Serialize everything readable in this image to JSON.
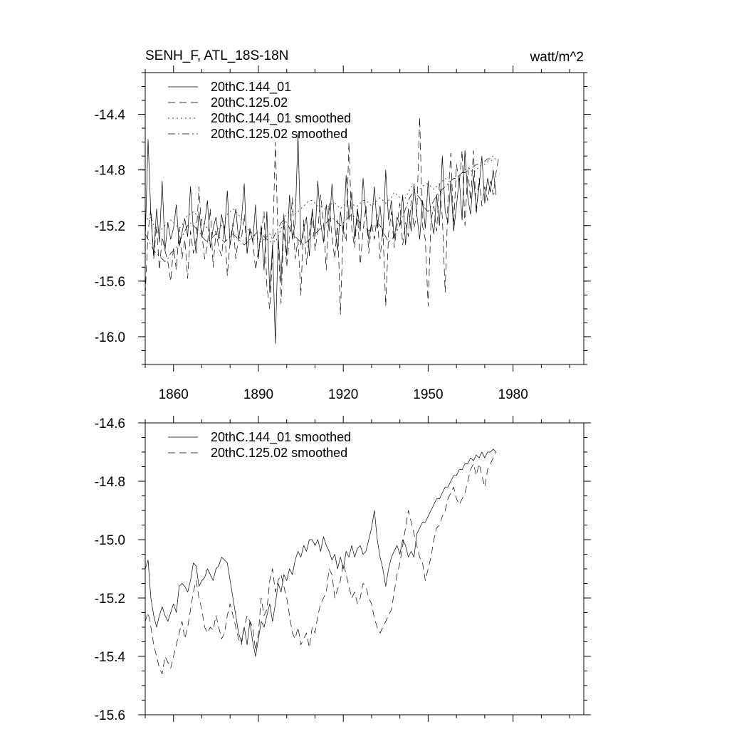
{
  "chart_data": [
    {
      "type": "line",
      "title": "SENH_F, ATL_18S-18N",
      "units": "watt/m^2",
      "xlabel": "",
      "ylabel": "",
      "xlim": [
        1850,
        2005
      ],
      "ylim": [
        -16.2,
        -14.1
      ],
      "xticks": [
        1860,
        1890,
        1920,
        1950,
        1980
      ],
      "xtick_labels": [
        "1860",
        "1890",
        "1920",
        "1950",
        "1980"
      ],
      "yticks": [
        -16.0,
        -15.6,
        -15.2,
        -14.8,
        -14.4
      ],
      "ytick_labels": [
        "-16.0",
        "-15.6",
        "-15.2",
        "-14.8",
        "-14.4"
      ],
      "legend_position": "top-left",
      "series": [
        {
          "name": "20thC.144_01",
          "style": "solid",
          "start": 1850,
          "values": [
            -15.3,
            -14.58,
            -15.12,
            -15.42,
            -15.08,
            -15.32,
            -14.88,
            -15.38,
            -15.18,
            -15.3,
            -15.22,
            -15.05,
            -15.35,
            -15.25,
            -15.15,
            -15.28,
            -14.92,
            -15.24,
            -15.4,
            -15.1,
            -15.28,
            -15.18,
            -15.02,
            -15.36,
            -15.22,
            -15.14,
            -15.3,
            -15.12,
            -15.26,
            -14.95,
            -15.34,
            -15.2,
            -15.08,
            -15.3,
            -15.16,
            -14.9,
            -15.4,
            -15.22,
            -15.32,
            -15.05,
            -15.44,
            -15.2,
            -15.52,
            -15.1,
            -15.68,
            -15.34,
            -16.05,
            -15.28,
            -15.6,
            -15.12,
            -15.42,
            -14.98,
            -15.3,
            -15.18,
            -14.54,
            -15.34,
            -15.22,
            -15.14,
            -15.42,
            -15.08,
            -15.28,
            -14.88,
            -15.18,
            -15.32,
            -15.05,
            -15.24,
            -14.9,
            -15.2,
            -15.38,
            -15.1,
            -15.26,
            -14.84,
            -15.16,
            -14.96,
            -15.3,
            -15.08,
            -15.24,
            -14.86,
            -15.12,
            -15.3,
            -15.18,
            -14.92,
            -15.22,
            -15.06,
            -15.28,
            -14.8,
            -15.16,
            -15.02,
            -15.3,
            -15.14,
            -15.2,
            -14.98,
            -15.34,
            -15.08,
            -15.24,
            -14.9,
            -15.12,
            -15.3,
            -15.02,
            -15.22,
            -14.88,
            -15.14,
            -15.26,
            -14.98,
            -15.2,
            -14.7,
            -15.1,
            -15.18,
            -14.88,
            -15.24,
            -15.06,
            -14.86,
            -15.16,
            -14.66,
            -15.0,
            -15.12,
            -14.84,
            -15.08,
            -14.92,
            -14.7,
            -15.04,
            -14.86,
            -14.96,
            -14.8,
            -14.98
          ]
        },
        {
          "name": "20thC.125.02",
          "style": "dashed",
          "start": 1850,
          "values": [
            -15.7,
            -15.24,
            -15.08,
            -15.44,
            -15.2,
            -15.52,
            -15.28,
            -15.38,
            -15.46,
            -15.6,
            -15.36,
            -15.52,
            -15.22,
            -15.44,
            -15.3,
            -15.58,
            -15.24,
            -15.4,
            -15.3,
            -14.92,
            -15.26,
            -15.44,
            -15.34,
            -15.08,
            -15.5,
            -15.24,
            -15.36,
            -15.42,
            -15.2,
            -15.56,
            -15.32,
            -15.18,
            -15.44,
            -15.28,
            -15.3,
            -15.12,
            -15.4,
            -15.24,
            -15.3,
            -15.52,
            -15.38,
            -15.26,
            -15.1,
            -15.64,
            -15.8,
            -15.4,
            -14.6,
            -15.34,
            -15.76,
            -15.2,
            -15.5,
            -15.28,
            -15.0,
            -15.44,
            -15.3,
            -15.7,
            -15.16,
            -15.48,
            -15.26,
            -15.1,
            -15.38,
            -15.24,
            -14.98,
            -15.18,
            -15.52,
            -15.04,
            -15.28,
            -15.44,
            -15.16,
            -15.84,
            -15.2,
            -15.32,
            -14.6,
            -15.22,
            -15.36,
            -15.1,
            -15.48,
            -15.24,
            -15.06,
            -15.4,
            -15.18,
            -15.3,
            -15.12,
            -15.44,
            -15.22,
            -15.78,
            -15.26,
            -15.1,
            -15.36,
            -15.2,
            -15.04,
            -15.34,
            -15.18,
            -15.28,
            -15.02,
            -15.22,
            -15.12,
            -14.42,
            -15.2,
            -15.3,
            -15.78,
            -15.16,
            -15.06,
            -15.24,
            -14.9,
            -15.14,
            -15.68,
            -15.02,
            -14.68,
            -15.2,
            -14.76,
            -14.9,
            -14.66,
            -15.2,
            -14.8,
            -15.02,
            -14.66,
            -15.12,
            -14.86,
            -15.06,
            -14.92,
            -15.02,
            -14.88,
            -14.98,
            -14.82,
            -14.7
          ]
        },
        {
          "name": "20thC.144_01 smoothed",
          "style": "dotted",
          "start": 1850,
          "values": [
            -15.12,
            -15.16,
            -15.14,
            -15.2,
            -15.24,
            -15.26,
            -15.22,
            -15.2,
            -15.18,
            -15.16,
            -15.18,
            -15.2,
            -15.22,
            -15.2,
            -15.16,
            -15.12,
            -15.12,
            -15.1,
            -15.12,
            -15.14,
            -15.16,
            -15.2,
            -15.22,
            -15.24,
            -15.26,
            -15.24,
            -15.22,
            -15.2,
            -15.16,
            -15.12,
            -15.1,
            -15.08,
            -15.1,
            -15.12,
            -15.16,
            -15.2,
            -15.22,
            -15.24,
            -15.26,
            -15.28,
            -15.3,
            -15.32,
            -15.3,
            -15.28,
            -15.26,
            -15.3,
            -15.32,
            -15.28,
            -15.22,
            -15.16,
            -15.12,
            -15.1,
            -15.1,
            -15.12,
            -15.1,
            -15.08,
            -15.06,
            -15.04,
            -15.02,
            -15.02,
            -15.04,
            -15.06,
            -15.06,
            -15.08,
            -15.08,
            -15.06,
            -15.04,
            -15.04,
            -15.06,
            -15.08,
            -15.06,
            -15.04,
            -15.02,
            -15.04,
            -15.06,
            -15.06,
            -15.04,
            -15.02,
            -15.02,
            -15.04,
            -15.06,
            -15.04,
            -15.02,
            -15.0,
            -15.02,
            -15.04,
            -15.02,
            -15.0,
            -14.96,
            -14.98,
            -15.0,
            -15.02,
            -15.0,
            -14.96,
            -14.92,
            -14.94,
            -14.96,
            -14.94,
            -14.92,
            -14.9,
            -14.9,
            -14.92,
            -14.94,
            -14.92,
            -14.9,
            -14.88,
            -14.86,
            -14.88,
            -14.88,
            -14.86,
            -14.84,
            -14.84,
            -14.82,
            -14.8,
            -14.78,
            -14.8,
            -14.82,
            -14.8,
            -14.78,
            -14.76,
            -14.76,
            -14.74,
            -14.74,
            -14.72,
            -14.72
          ]
        },
        {
          "name": "20thC.125.02 smoothed",
          "style": "dashdot",
          "start": 1850,
          "values": [
            -15.26,
            -15.3,
            -15.34,
            -15.38,
            -15.4,
            -15.42,
            -15.44,
            -15.46,
            -15.44,
            -15.4,
            -15.38,
            -15.36,
            -15.32,
            -15.28,
            -15.24,
            -15.2,
            -15.18,
            -15.2,
            -15.22,
            -15.24,
            -15.28,
            -15.3,
            -15.32,
            -15.3,
            -15.28,
            -15.26,
            -15.28,
            -15.3,
            -15.32,
            -15.3,
            -15.28,
            -15.26,
            -15.28,
            -15.3,
            -15.32,
            -15.34,
            -15.32,
            -15.3,
            -15.28,
            -15.26,
            -15.24,
            -15.26,
            -15.28,
            -15.3,
            -15.32,
            -15.3,
            -15.26,
            -15.22,
            -15.18,
            -15.16,
            -15.18,
            -15.22,
            -15.26,
            -15.28,
            -15.3,
            -15.32,
            -15.34,
            -15.32,
            -15.3,
            -15.28,
            -15.26,
            -15.24,
            -15.22,
            -15.2,
            -15.18,
            -15.16,
            -15.14,
            -15.16,
            -15.18,
            -15.2,
            -15.18,
            -15.16,
            -15.14,
            -15.12,
            -15.14,
            -15.16,
            -15.18,
            -15.2,
            -15.22,
            -15.24,
            -15.22,
            -15.2,
            -15.18,
            -15.2,
            -15.24,
            -15.28,
            -15.32,
            -15.3,
            -15.28,
            -15.24,
            -15.2,
            -15.14,
            -15.08,
            -15.02,
            -14.98,
            -14.96,
            -14.98,
            -15.0,
            -15.04,
            -15.08,
            -15.1,
            -15.06,
            -15.02,
            -14.98,
            -14.96,
            -14.94,
            -14.92,
            -14.9,
            -14.88,
            -14.86,
            -14.86,
            -14.84,
            -14.82,
            -14.82,
            -14.8,
            -14.78,
            -14.78,
            -14.76,
            -14.76,
            -14.74,
            -14.74,
            -14.72,
            -14.72,
            -14.7,
            -14.7
          ]
        }
      ]
    },
    {
      "type": "line",
      "title": "",
      "xlabel": "",
      "ylabel": "",
      "xlim": [
        1850,
        2005
      ],
      "ylim": [
        -15.6,
        -14.6
      ],
      "xticks": [
        1860,
        1890,
        1920,
        1950,
        1980
      ],
      "yticks": [
        -15.6,
        -15.4,
        -15.2,
        -15.0,
        -14.8,
        -14.6
      ],
      "ytick_labels": [
        "-15.6",
        "-15.4",
        "-15.2",
        "-15.0",
        "-14.8",
        "-14.6"
      ],
      "legend_position": "top-left",
      "series": [
        {
          "name": "20thC.144_01 smoothed",
          "style": "solid",
          "start": 1850,
          "values": [
            -15.1,
            -15.07,
            -15.2,
            -15.26,
            -15.3,
            -15.26,
            -15.23,
            -15.26,
            -15.28,
            -15.25,
            -15.22,
            -15.25,
            -15.16,
            -15.15,
            -15.16,
            -15.18,
            -15.14,
            -15.08,
            -15.09,
            -15.16,
            -15.14,
            -15.13,
            -15.1,
            -15.12,
            -15.14,
            -15.1,
            -15.09,
            -15.06,
            -15.07,
            -15.08,
            -15.14,
            -15.2,
            -15.26,
            -15.32,
            -15.35,
            -15.3,
            -15.36,
            -15.28,
            -15.35,
            -15.4,
            -15.34,
            -15.28,
            -15.3,
            -15.26,
            -15.22,
            -15.28,
            -15.22,
            -15.15,
            -15.18,
            -15.12,
            -15.14,
            -15.1,
            -15.12,
            -15.07,
            -15.04,
            -15.06,
            -15.02,
            -15.04,
            -15.0,
            -15.0,
            -15.02,
            -15.0,
            -15.04,
            -14.99,
            -15.02,
            -15.04,
            -15.07,
            -15.05,
            -15.1,
            -15.06,
            -15.1,
            -15.04,
            -15.06,
            -15.02,
            -15.06,
            -15.03,
            -15.02,
            -15.05,
            -15.04,
            -15.0,
            -14.96,
            -14.9,
            -15.0,
            -15.06,
            -15.1,
            -15.16,
            -15.1,
            -15.06,
            -15.04,
            -15.02,
            -15.05,
            -15.0,
            -15.02,
            -15.06,
            -15.04,
            -15.06,
            -14.98,
            -14.96,
            -14.94,
            -14.94,
            -14.92,
            -14.9,
            -14.88,
            -14.86,
            -14.86,
            -14.84,
            -14.82,
            -14.82,
            -14.8,
            -14.78,
            -14.78,
            -14.76,
            -14.76,
            -14.74,
            -14.74,
            -14.72,
            -14.73,
            -14.71,
            -14.72,
            -14.7,
            -14.72,
            -14.7,
            -14.7,
            -14.69,
            -14.7
          ]
        },
        {
          "name": "20thC.125.02 smoothed",
          "style": "dashed",
          "start": 1850,
          "values": [
            -15.28,
            -15.25,
            -15.3,
            -15.36,
            -15.4,
            -15.44,
            -15.46,
            -15.4,
            -15.42,
            -15.44,
            -15.4,
            -15.36,
            -15.32,
            -15.28,
            -15.34,
            -15.3,
            -15.24,
            -15.18,
            -15.14,
            -15.2,
            -15.24,
            -15.3,
            -15.32,
            -15.3,
            -15.31,
            -15.26,
            -15.3,
            -15.34,
            -15.32,
            -15.26,
            -15.22,
            -15.26,
            -15.3,
            -15.34,
            -15.36,
            -15.3,
            -15.26,
            -15.28,
            -15.3,
            -15.38,
            -15.32,
            -15.2,
            -15.26,
            -15.24,
            -15.14,
            -15.1,
            -15.18,
            -15.14,
            -15.12,
            -15.16,
            -15.2,
            -15.26,
            -15.32,
            -15.34,
            -15.3,
            -15.36,
            -15.34,
            -15.32,
            -15.37,
            -15.3,
            -15.32,
            -15.26,
            -15.22,
            -15.2,
            -15.18,
            -15.1,
            -15.12,
            -15.2,
            -15.17,
            -15.14,
            -15.08,
            -15.12,
            -15.16,
            -15.2,
            -15.18,
            -15.22,
            -15.2,
            -15.15,
            -15.16,
            -15.2,
            -15.22,
            -15.27,
            -15.3,
            -15.32,
            -15.3,
            -15.28,
            -15.26,
            -15.24,
            -15.18,
            -15.12,
            -15.08,
            -15.02,
            -14.96,
            -14.9,
            -14.94,
            -14.98,
            -15.02,
            -15.06,
            -15.08,
            -15.14,
            -15.1,
            -15.06,
            -15.0,
            -14.96,
            -14.95,
            -14.92,
            -14.9,
            -14.86,
            -14.84,
            -14.82,
            -14.86,
            -14.88,
            -14.86,
            -14.84,
            -14.8,
            -14.76,
            -14.74,
            -14.78,
            -14.74,
            -14.78,
            -14.82,
            -14.76,
            -14.74,
            -14.72,
            -14.7
          ]
        }
      ]
    }
  ]
}
